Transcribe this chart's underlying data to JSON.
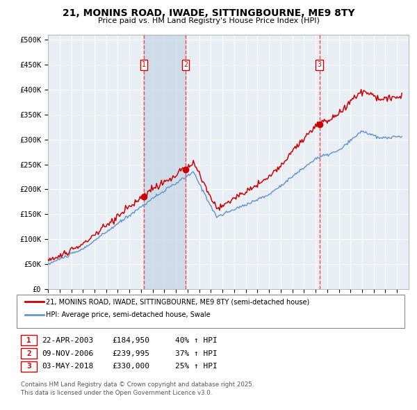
{
  "title": "21, MONINS ROAD, IWADE, SITTINGBOURNE, ME9 8TY",
  "subtitle": "Price paid vs. HM Land Registry's House Price Index (HPI)",
  "legend_line1": "21, MONINS ROAD, IWADE, SITTINGBOURNE, ME9 8TY (semi-detached house)",
  "legend_line2": "HPI: Average price, semi-detached house, Swale",
  "sale_prices": [
    184950,
    239995,
    330000
  ],
  "sale_labels": [
    "1",
    "2",
    "3"
  ],
  "sale_pct": [
    "40% ↑ HPI",
    "37% ↑ HPI",
    "25% ↑ HPI"
  ],
  "sale_dates_display": [
    "22-APR-2003",
    "09-NOV-2006",
    "03-MAY-2018"
  ],
  "footnote1": "Contains HM Land Registry data © Crown copyright and database right 2025.",
  "footnote2": "This data is licensed under the Open Government Licence v3.0.",
  "ylabel_ticks": [
    "£0",
    "£50K",
    "£100K",
    "£150K",
    "£200K",
    "£250K",
    "£300K",
    "£350K",
    "£400K",
    "£450K",
    "£500K"
  ],
  "ytick_values": [
    0,
    50000,
    100000,
    150000,
    200000,
    250000,
    300000,
    350000,
    400000,
    450000,
    500000
  ],
  "ymax": 510000,
  "background_color": "#FFFFFF",
  "plot_bg_color": "#E8EEF4",
  "grid_color": "#FFFFFF",
  "red_line_color": "#CC0000",
  "blue_line_color": "#6699CC",
  "shade_color": "#C8D8E8",
  "dashed_line_color": "#FF4444",
  "marker_color": "#CC0000"
}
